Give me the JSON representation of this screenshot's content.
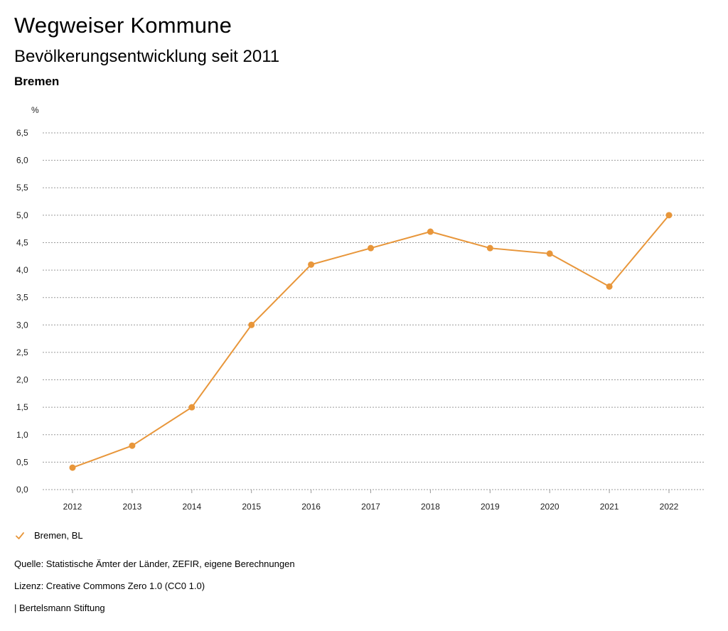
{
  "header": {
    "app_title": "Wegweiser Kommune",
    "subtitle": "Bevölkerungsentwicklung seit 2011",
    "region": "Bremen"
  },
  "chart_data": {
    "type": "line",
    "unit_label": "%",
    "x": [
      "2012",
      "2013",
      "2014",
      "2015",
      "2016",
      "2017",
      "2018",
      "2019",
      "2020",
      "2021",
      "2022"
    ],
    "series": [
      {
        "name": "Bremen, BL",
        "color": "#e8963a",
        "values": [
          0.4,
          0.8,
          1.5,
          3.0,
          4.1,
          4.4,
          4.7,
          4.4,
          4.3,
          3.7,
          5.0
        ]
      }
    ],
    "ylim": [
      0,
      6.5
    ],
    "y_ticks": [
      "0,0",
      "0,5",
      "1,0",
      "1,5",
      "2,0",
      "2,5",
      "3,0",
      "3,5",
      "4,0",
      "4,5",
      "5,0",
      "5,5",
      "6,0",
      "6,5"
    ],
    "grid": true,
    "legend_position": "bottom-left"
  },
  "legend": {
    "label": "Bremen, BL",
    "icon": "check-icon"
  },
  "footer": {
    "source": "Quelle: Statistische Ämter der Länder, ZEFIR, eigene Berechnungen",
    "license": "Lizenz: Creative Commons Zero 1.0 (CC0 1.0)",
    "credit": "| Bertelsmann Stiftung"
  }
}
